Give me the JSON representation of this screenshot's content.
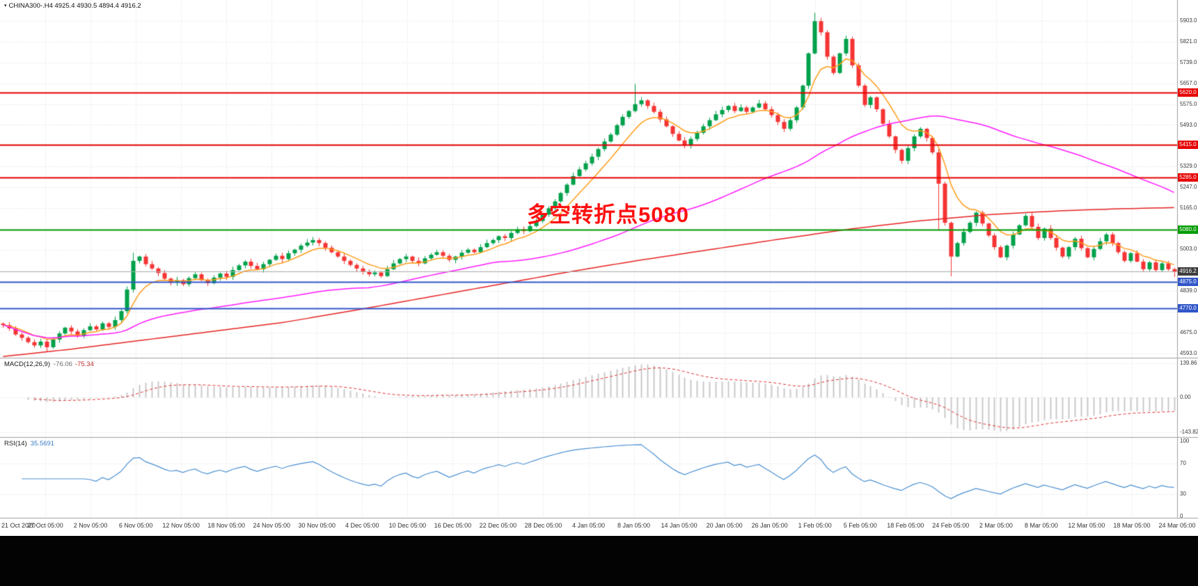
{
  "window": {
    "title": "CHINA300-.H4 4925.4 4930.5 4894.4 4916.2"
  },
  "indicators": {
    "macd": {
      "label": "MACD(12,26,9)",
      "value_main": "-76.06",
      "value_signal": "-75.34",
      "axis": [
        {
          "label": "139.86",
          "value": 139.86
        },
        {
          "label": "0.00",
          "value": 0
        },
        {
          "label": "-143.82",
          "value": -143.82
        }
      ]
    },
    "rsi": {
      "label": "RSI(14)",
      "value": "35.5691",
      "axis": [
        {
          "label": "100",
          "value": 100
        },
        {
          "label": "70",
          "value": 70
        },
        {
          "label": "30",
          "value": 30
        },
        {
          "label": "0",
          "value": 0
        }
      ]
    }
  },
  "chart_data": {
    "type": "candlestick",
    "symbol": "CHINA300-",
    "timeframe": "H4",
    "last_candle": {
      "open": 4925.4,
      "high": 4930.5,
      "low": 4894.4,
      "close": 4916.2
    },
    "y_range": [
      4593,
      5903
    ],
    "y_axis_ticks": [
      5903,
      5821,
      5739,
      5657,
      5575,
      5493,
      5329,
      5247,
      5165,
      5003,
      4839,
      4675,
      4593
    ],
    "x_labels": [
      "21 Oct 2020",
      "27 Oct 05:00",
      "2 Nov 05:00",
      "6 Nov 05:00",
      "12 Nov 05:00",
      "18 Nov 05:00",
      "24 Nov 05:00",
      "30 Nov 05:00",
      "4 Dec 05:00",
      "10 Dec 05:00",
      "16 Dec 05:00",
      "22 Dec 05:00",
      "28 Dec 05:00",
      "4 Jan 05:00",
      "8 Jan 05:00",
      "14 Jan 05:00",
      "20 Jan 05:00",
      "26 Jan 05:00",
      "1 Feb 05:00",
      "5 Feb 05:00",
      "18 Feb 05:00",
      "24 Feb 05:00",
      "2 Mar 05:00",
      "8 Mar 05:00",
      "12 Mar 05:00",
      "18 Mar 05:00",
      "24 Mar 05:00"
    ],
    "closes": [
      4705,
      4692,
      4668,
      4655,
      4638,
      4625,
      4640,
      4618,
      4648,
      4672,
      4695,
      4680,
      4662,
      4685,
      4700,
      4688,
      4712,
      4698,
      4725,
      4760,
      4845,
      4958,
      4975,
      4945,
      4928,
      4910,
      4888,
      4872,
      4882,
      4866,
      4890,
      4905,
      4882,
      4870,
      4892,
      4908,
      4895,
      4922,
      4940,
      4955,
      4938,
      4925,
      4945,
      4962,
      4978,
      4965,
      4988,
      5002,
      5018,
      5030,
      5040,
      5028,
      5010,
      4992,
      4975,
      4958,
      4942,
      4928,
      4915,
      4905,
      4912,
      4898,
      4925,
      4948,
      4965,
      4975,
      4958,
      4948,
      4968,
      4982,
      4992,
      4978,
      4962,
      4975,
      4990,
      5002,
      4992,
      5012,
      5028,
      5040,
      5055,
      5048,
      5068,
      5082,
      5075,
      5095,
      5115,
      5140,
      5165,
      5192,
      5225,
      5258,
      5292,
      5318,
      5342,
      5368,
      5398,
      5428,
      5455,
      5492,
      5525,
      5548,
      5575,
      5590,
      5568,
      5545,
      5515,
      5488,
      5458,
      5432,
      5412,
      5438,
      5462,
      5488,
      5512,
      5535,
      5552,
      5568,
      5548,
      5562,
      5545,
      5562,
      5578,
      5555,
      5532,
      5505,
      5478,
      5512,
      5562,
      5648,
      5775,
      5902,
      5858,
      5762,
      5698,
      5775,
      5832,
      5728,
      5648,
      5572,
      5602,
      5555,
      5498,
      5448,
      5395,
      5352,
      5402,
      5448,
      5478,
      5442,
      5385,
      5262,
      5108,
      4975,
      5028,
      5072,
      5108,
      5148,
      5105,
      5058,
      5012,
      4972,
      5018,
      5062,
      5098,
      5135,
      5092,
      5048,
      5085,
      5048,
      5010,
      4975,
      5012,
      5045,
      5008,
      4972,
      5005,
      5035,
      5062,
      5028,
      4992,
      4958,
      4988,
      4955,
      4925,
      4952,
      4922,
      4948,
      4925,
      4916.2
    ],
    "wick_overrides": {
      "7": {
        "low": 4598
      },
      "21": {
        "high": 4990
      },
      "50": {
        "high": 5052
      },
      "61": {
        "low": 4892
      },
      "102": {
        "high": 5655
      },
      "131": {
        "high": 5935
      },
      "136": {
        "high": 5845
      },
      "151": {
        "low": 5080
      },
      "153": {
        "low": 4897
      }
    },
    "colors": {
      "up": "#00a14b",
      "down": "#f53434"
    },
    "horizontal_levels": [
      {
        "price": 5620,
        "label": "5620.0",
        "color": "#e60000"
      },
      {
        "price": 5415,
        "label": "5415.0",
        "color": "#e60000"
      },
      {
        "price": 5285,
        "label": "5285.0",
        "color": "#e60000"
      },
      {
        "price": 5080,
        "label": "5080.0",
        "color": "#009c00"
      },
      {
        "price": 4875,
        "label": "4875.0",
        "color": "#3156c9"
      },
      {
        "price": 4770,
        "label": "4770.0",
        "color": "#3156c9"
      }
    ],
    "current_price": {
      "value": 4916.2,
      "label": "4916.2",
      "line_color": "#b0b0b0",
      "box_color": "#3d3d3d"
    },
    "moving_averages": [
      {
        "name": "ma-fast",
        "color": "#ff9d1a",
        "method": "ema",
        "period": 8
      },
      {
        "name": "ma-mid",
        "color": "#ff1aff",
        "method": "sma",
        "period": 60
      },
      {
        "name": "ma-slow",
        "color": "#e82222",
        "method": "anchors",
        "anchors": [
          [
            0,
            4580
          ],
          [
            0.06,
            4610
          ],
          [
            0.12,
            4645
          ],
          [
            0.18,
            4680
          ],
          [
            0.24,
            4715
          ],
          [
            0.3,
            4762
          ],
          [
            0.36,
            4812
          ],
          [
            0.42,
            4862
          ],
          [
            0.48,
            4912
          ],
          [
            0.54,
            4958
          ],
          [
            0.6,
            5000
          ],
          [
            0.66,
            5042
          ],
          [
            0.72,
            5082
          ],
          [
            0.78,
            5115
          ],
          [
            0.84,
            5140
          ],
          [
            0.9,
            5155
          ],
          [
            0.95,
            5163
          ],
          [
            1,
            5168
          ]
        ]
      }
    ],
    "annotation": {
      "text": "多空转折点5080",
      "color": "#ff0f0f"
    },
    "macd_settings": {
      "fast": 12,
      "slow": 26,
      "signal": 9,
      "histogram_color": "#c8c8c8",
      "signal_color": "#e03030",
      "last_main": -76.06,
      "last_signal": -75.34,
      "axis_range": [
        -143.82,
        139.86
      ]
    },
    "rsi_settings": {
      "period": 14,
      "color": "#4a8fd2",
      "levels": [
        70,
        30
      ],
      "last": 35.5691,
      "range": [
        0,
        100
      ]
    }
  }
}
